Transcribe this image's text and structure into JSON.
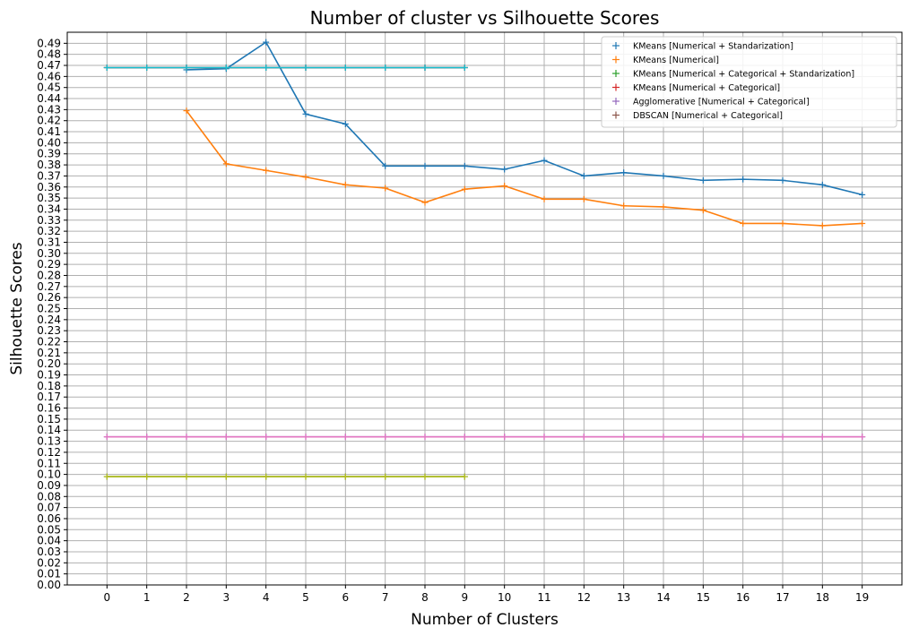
{
  "chart_data": {
    "type": "line",
    "title": "Number of cluster vs Silhouette Scores",
    "xlabel": "Number of Clusters",
    "ylabel": "Silhouette Scores",
    "xlim": [
      -1,
      20
    ],
    "ylim": [
      0,
      0.5
    ],
    "xticks": [
      0,
      1,
      2,
      3,
      4,
      5,
      6,
      7,
      8,
      9,
      10,
      11,
      12,
      13,
      14,
      15,
      16,
      17,
      18,
      19
    ],
    "ytick_step": 0.01,
    "ytick_max": 0.49,
    "grid": true,
    "legend_position": "top-right",
    "marker": "+",
    "series": [
      {
        "name": "KMeans [Numerical + Standarization]",
        "color": "#1f77b4",
        "x": [
          2,
          3,
          4,
          5,
          6,
          7,
          8,
          9,
          10,
          11,
          12,
          13,
          14,
          15,
          16,
          17,
          18,
          19
        ],
        "values": [
          0.466,
          0.467,
          0.491,
          0.426,
          0.417,
          0.379,
          0.379,
          0.379,
          0.376,
          0.384,
          0.37,
          0.373,
          0.37,
          0.366,
          0.367,
          0.366,
          0.362,
          0.353
        ]
      },
      {
        "name": "KMeans [Numerical]",
        "color": "#ff7f0e",
        "x": [
          2,
          3,
          4,
          5,
          6,
          7,
          8,
          9,
          10,
          11,
          12,
          13,
          14,
          15,
          16,
          17,
          18,
          19
        ],
        "values": [
          0.429,
          0.381,
          0.375,
          0.369,
          0.362,
          0.359,
          0.346,
          0.358,
          0.361,
          0.349,
          0.349,
          0.343,
          0.342,
          0.339,
          0.327,
          0.327,
          0.325,
          0.327
        ]
      },
      {
        "name": "KMeans [Numerical + Categorical + Standarization]",
        "color": "#2ca02c",
        "x": [
          0,
          1,
          2,
          3,
          4,
          5,
          6,
          7,
          8,
          9
        ],
        "values": [
          0.098,
          0.098,
          0.098,
          0.098,
          0.098,
          0.098,
          0.098,
          0.098,
          0.098,
          0.098
        ]
      },
      {
        "name": "KMeans [Numerical + Categorical]",
        "color": "#d62728",
        "x": [
          0,
          1,
          2,
          3,
          4,
          5,
          6,
          7,
          8,
          9
        ],
        "values": [
          0.468,
          0.468,
          0.468,
          0.468,
          0.468,
          0.468,
          0.468,
          0.468,
          0.468,
          0.468
        ]
      },
      {
        "name": "Agglomerative [Numerical + Categorical]",
        "color": "#9467bd",
        "x": [
          0,
          1,
          2,
          3,
          4,
          5,
          6,
          7,
          8,
          9,
          10,
          11,
          12,
          13,
          14,
          15,
          16,
          17,
          18,
          19
        ],
        "values": [
          0.134,
          0.134,
          0.134,
          0.134,
          0.134,
          0.134,
          0.134,
          0.134,
          0.134,
          0.134,
          0.134,
          0.134,
          0.134,
          0.134,
          0.134,
          0.134,
          0.134,
          0.134,
          0.134,
          0.134
        ]
      },
      {
        "name": "DBSCAN [Numerical + Categorical]",
        "color": "#8c564b",
        "x": [
          0,
          1,
          2,
          3,
          4,
          5,
          6,
          7,
          8,
          9
        ],
        "values": [
          0.468,
          0.468,
          0.468,
          0.468,
          0.468,
          0.468,
          0.468,
          0.468,
          0.468,
          0.468
        ]
      },
      {
        "color": "#e377c2",
        "x": [
          0,
          1,
          2,
          3,
          4,
          5,
          6,
          7,
          8,
          9,
          10,
          11,
          12,
          13,
          14,
          15,
          16,
          17,
          18,
          19
        ],
        "values": [
          0.134,
          0.134,
          0.134,
          0.134,
          0.134,
          0.134,
          0.134,
          0.134,
          0.134,
          0.134,
          0.134,
          0.134,
          0.134,
          0.134,
          0.134,
          0.134,
          0.134,
          0.134,
          0.134,
          0.134
        ]
      },
      {
        "color": "#7f7f7f",
        "x": [
          0,
          1,
          2,
          3,
          4,
          5,
          6,
          7,
          8,
          9
        ],
        "values": [
          0.468,
          0.468,
          0.468,
          0.468,
          0.468,
          0.468,
          0.468,
          0.468,
          0.468,
          0.468
        ]
      },
      {
        "color": "#bcbd22",
        "x": [
          0,
          1,
          2,
          3,
          4,
          5,
          6,
          7,
          8,
          9
        ],
        "values": [
          0.098,
          0.098,
          0.098,
          0.098,
          0.098,
          0.098,
          0.098,
          0.098,
          0.098,
          0.098
        ]
      },
      {
        "color": "#17becf",
        "x": [
          0,
          1,
          2,
          3,
          4,
          5,
          6,
          7,
          8,
          9
        ],
        "values": [
          0.468,
          0.468,
          0.468,
          0.468,
          0.468,
          0.468,
          0.468,
          0.468,
          0.468,
          0.468
        ]
      }
    ]
  }
}
